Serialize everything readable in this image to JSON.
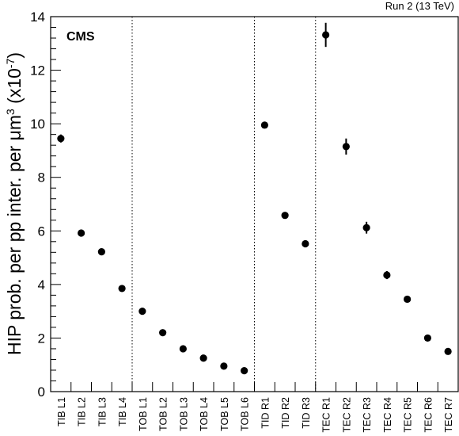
{
  "header": {
    "run_label": "Run 2 (13 TeV)",
    "experiment_label": "CMS"
  },
  "chart_data": {
    "type": "scatter",
    "title": "",
    "xlabel": "",
    "ylabel_main": "HIP prob. per pp inter. per μm",
    "ylabel_sup": "3",
    "ylabel_scale": " (x10",
    "ylabel_scale_sup": "-7",
    "ylabel_close": ")",
    "ylim": [
      0,
      14
    ],
    "yticks": [
      "0",
      "2",
      "4",
      "6",
      "8",
      "10",
      "12",
      "14"
    ],
    "grid": false,
    "legend": "none",
    "separators_after": [
      "TIB L4",
      "TOB L6",
      "TID R3"
    ],
    "points": [
      {
        "label": "TIB L1",
        "y": 9.45,
        "err": 0.15
      },
      {
        "label": "TIB L2",
        "y": 5.92,
        "err": 0.05
      },
      {
        "label": "TIB L3",
        "y": 5.22,
        "err": 0.05
      },
      {
        "label": "TIB L4",
        "y": 3.85,
        "err": 0.05
      },
      {
        "label": "TOB L1",
        "y": 3.0,
        "err": 0.05
      },
      {
        "label": "TOB L2",
        "y": 2.2,
        "err": 0.05
      },
      {
        "label": "TOB L3",
        "y": 1.6,
        "err": 0.05
      },
      {
        "label": "TOB L4",
        "y": 1.25,
        "err": 0.05
      },
      {
        "label": "TOB L5",
        "y": 0.95,
        "err": 0.05
      },
      {
        "label": "TOB L6",
        "y": 0.78,
        "err": 0.05
      },
      {
        "label": "TID R1",
        "y": 9.95,
        "err": 0.08
      },
      {
        "label": "TID R2",
        "y": 6.58,
        "err": 0.1
      },
      {
        "label": "TID R3",
        "y": 5.52,
        "err": 0.05
      },
      {
        "label": "TEC R1",
        "y": 13.32,
        "err": 0.45
      },
      {
        "label": "TEC R2",
        "y": 9.15,
        "err": 0.3
      },
      {
        "label": "TEC R3",
        "y": 6.12,
        "err": 0.22
      },
      {
        "label": "TEC R4",
        "y": 4.35,
        "err": 0.15
      },
      {
        "label": "TEC R5",
        "y": 3.45,
        "err": 0.05
      },
      {
        "label": "TEC R6",
        "y": 2.0,
        "err": 0.05
      },
      {
        "label": "TEC R7",
        "y": 1.5,
        "err": 0.05
      }
    ]
  }
}
